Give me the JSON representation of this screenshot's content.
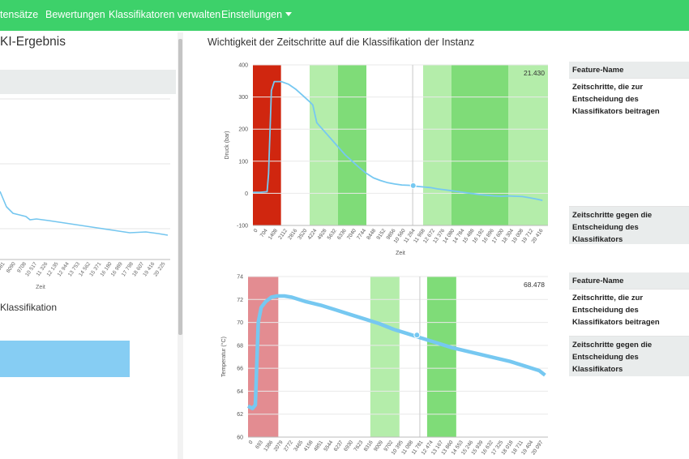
{
  "navbar": {
    "items": [
      {
        "label": "tensätze"
      },
      {
        "label": "Bewertungen"
      },
      {
        "label": "Klassifikatoren verwalten"
      },
      {
        "label": "Einstellungen"
      }
    ],
    "color": "#3dd16a"
  },
  "left_panel": {
    "title": "KI-Ergebnis",
    "subtitle": "Klassifikation",
    "x_label": "Zeit",
    "x_ticks": [
      "681",
      "8090",
      "9708",
      "10 517",
      "11 326",
      "12 135",
      "12 944",
      "13 753",
      "14 562",
      "15 371",
      "16 180",
      "16 989",
      "17 798",
      "18 607",
      "19 416",
      "20 225"
    ],
    "line_color": "#74c6ef",
    "bar_color": "#86cdf3"
  },
  "right_title": "Wichtigkeit der Zeitschritte auf die Klassifikation der Instanz",
  "chart_data": [
    {
      "type": "line",
      "ylabel": "Druck (bar)",
      "xlabel": "Zeit",
      "ylim": [
        -100,
        400
      ],
      "yticks": [
        "400",
        "300",
        "200",
        "100",
        "0",
        "-100"
      ],
      "x_ticks": [
        "0",
        "704",
        "1408",
        "2112",
        "2816",
        "3520",
        "4224",
        "4928",
        "5632",
        "6336",
        "7040",
        "7744",
        "8448",
        "9152",
        "9856",
        "10 560",
        "11 264",
        "11 968",
        "12 672",
        "13 376",
        "14 080",
        "14 784",
        "15 488",
        "16 192",
        "16 896",
        "17 600",
        "18 304",
        "19 008",
        "19 712",
        "20 416"
      ],
      "xlim": [
        0,
        20800
      ],
      "value_label": "21.430",
      "series": [
        {
          "x": [
            0,
            500,
            1000,
            1100,
            1300,
            1500,
            2000,
            2500,
            3000,
            3500,
            4000,
            4224,
            4500,
            5000,
            5500,
            6000,
            6500,
            7000,
            7500,
            8000,
            8500,
            9000,
            9500,
            10000,
            10500,
            11000,
            11500,
            12000,
            12500,
            13000,
            13500,
            14000,
            14500,
            15000,
            15500,
            16000,
            16500,
            17000,
            17500,
            18000,
            18500,
            19000,
            19500,
            20000,
            20416
          ],
          "y": [
            3,
            3,
            5,
            60,
            320,
            348,
            348,
            340,
            325,
            305,
            285,
            275,
            220,
            195,
            170,
            145,
            120,
            100,
            80,
            62,
            48,
            40,
            33,
            29,
            26,
            25,
            22,
            20,
            18,
            14,
            11,
            8,
            5,
            2,
            -1,
            -4,
            -6,
            -8,
            -9,
            -8,
            -9,
            -10,
            -14,
            -18,
            -22
          ]
        }
      ],
      "marker": {
        "x": 11300,
        "y": 24
      },
      "vline_x": 11264,
      "regions": [
        {
          "from": 0,
          "to": 1980,
          "color": "#d0260f"
        },
        {
          "from": 4000,
          "to": 6000,
          "color": "#b4edaa"
        },
        {
          "from": 6000,
          "to": 8000,
          "color": "#7fdc78"
        },
        {
          "from": 12000,
          "to": 14000,
          "color": "#b4edaa"
        },
        {
          "from": 14000,
          "to": 18000,
          "color": "#7fdc78"
        },
        {
          "from": 18000,
          "to": 20800,
          "color": "#b4edaa"
        }
      ]
    },
    {
      "type": "line",
      "ylabel": "Temperatur (°C)",
      "xlabel": "",
      "ylim": [
        60,
        74
      ],
      "yticks": [
        "74",
        "72",
        "70",
        "68",
        "66",
        "64",
        "62",
        "60"
      ],
      "x_ticks": [
        "0",
        "693",
        "1386",
        "2079",
        "2772",
        "3465",
        "4158",
        "4851",
        "5544",
        "6237",
        "6930",
        "7623",
        "8316",
        "9009",
        "9702",
        "10 395",
        "11 088",
        "11 781",
        "12 474",
        "13 167",
        "13 860",
        "14 553",
        "15 246",
        "15 939",
        "16 632",
        "17 325",
        "18 018",
        "18 711",
        "19 404",
        "20 097"
      ],
      "xlim": [
        0,
        20600
      ],
      "value_label": "68.478",
      "series": [
        {
          "x": [
            0,
            300,
            500,
            700,
            900,
            1200,
            1600,
            2000,
            2500,
            3000,
            4000,
            5000,
            6000,
            7000,
            8000,
            9000,
            10000,
            11000,
            12000,
            13000,
            14000,
            15000,
            16000,
            17000,
            18000,
            19000,
            20000,
            20400
          ],
          "y": [
            62.7,
            62.5,
            62.8,
            70.0,
            71.3,
            71.8,
            72.2,
            72.3,
            72.3,
            72.2,
            71.8,
            71.5,
            71.1,
            70.7,
            70.3,
            69.9,
            69.4,
            69.0,
            68.6,
            68.2,
            67.8,
            67.5,
            67.2,
            66.9,
            66.6,
            66.2,
            65.8,
            65.4
          ]
        }
      ],
      "marker": {
        "x": 11600,
        "y": 68.9
      },
      "vline_x": 11800,
      "regions": [
        {
          "from": 0,
          "to": 2079,
          "color": "#e38c91"
        },
        {
          "from": 8400,
          "to": 10400,
          "color": "#b4edaa"
        },
        {
          "from": 12300,
          "to": 14300,
          "color": "#7fdc78"
        }
      ]
    }
  ],
  "feature_tables": [
    {
      "header": "Feature-Name",
      "for_label": "Zeitschritte, die zur Entscheidung des Klassifikators beitragen",
      "against_label": "Zeitschritte gegen die Entscheidung des Klassifikators"
    },
    {
      "header": "Feature-Name",
      "for_label": "Zeitschritte, die zur Entscheidung des Klassifikators beitragen",
      "against_label": "Zeitschritte gegen die Entscheidung des Klassifikators"
    }
  ]
}
